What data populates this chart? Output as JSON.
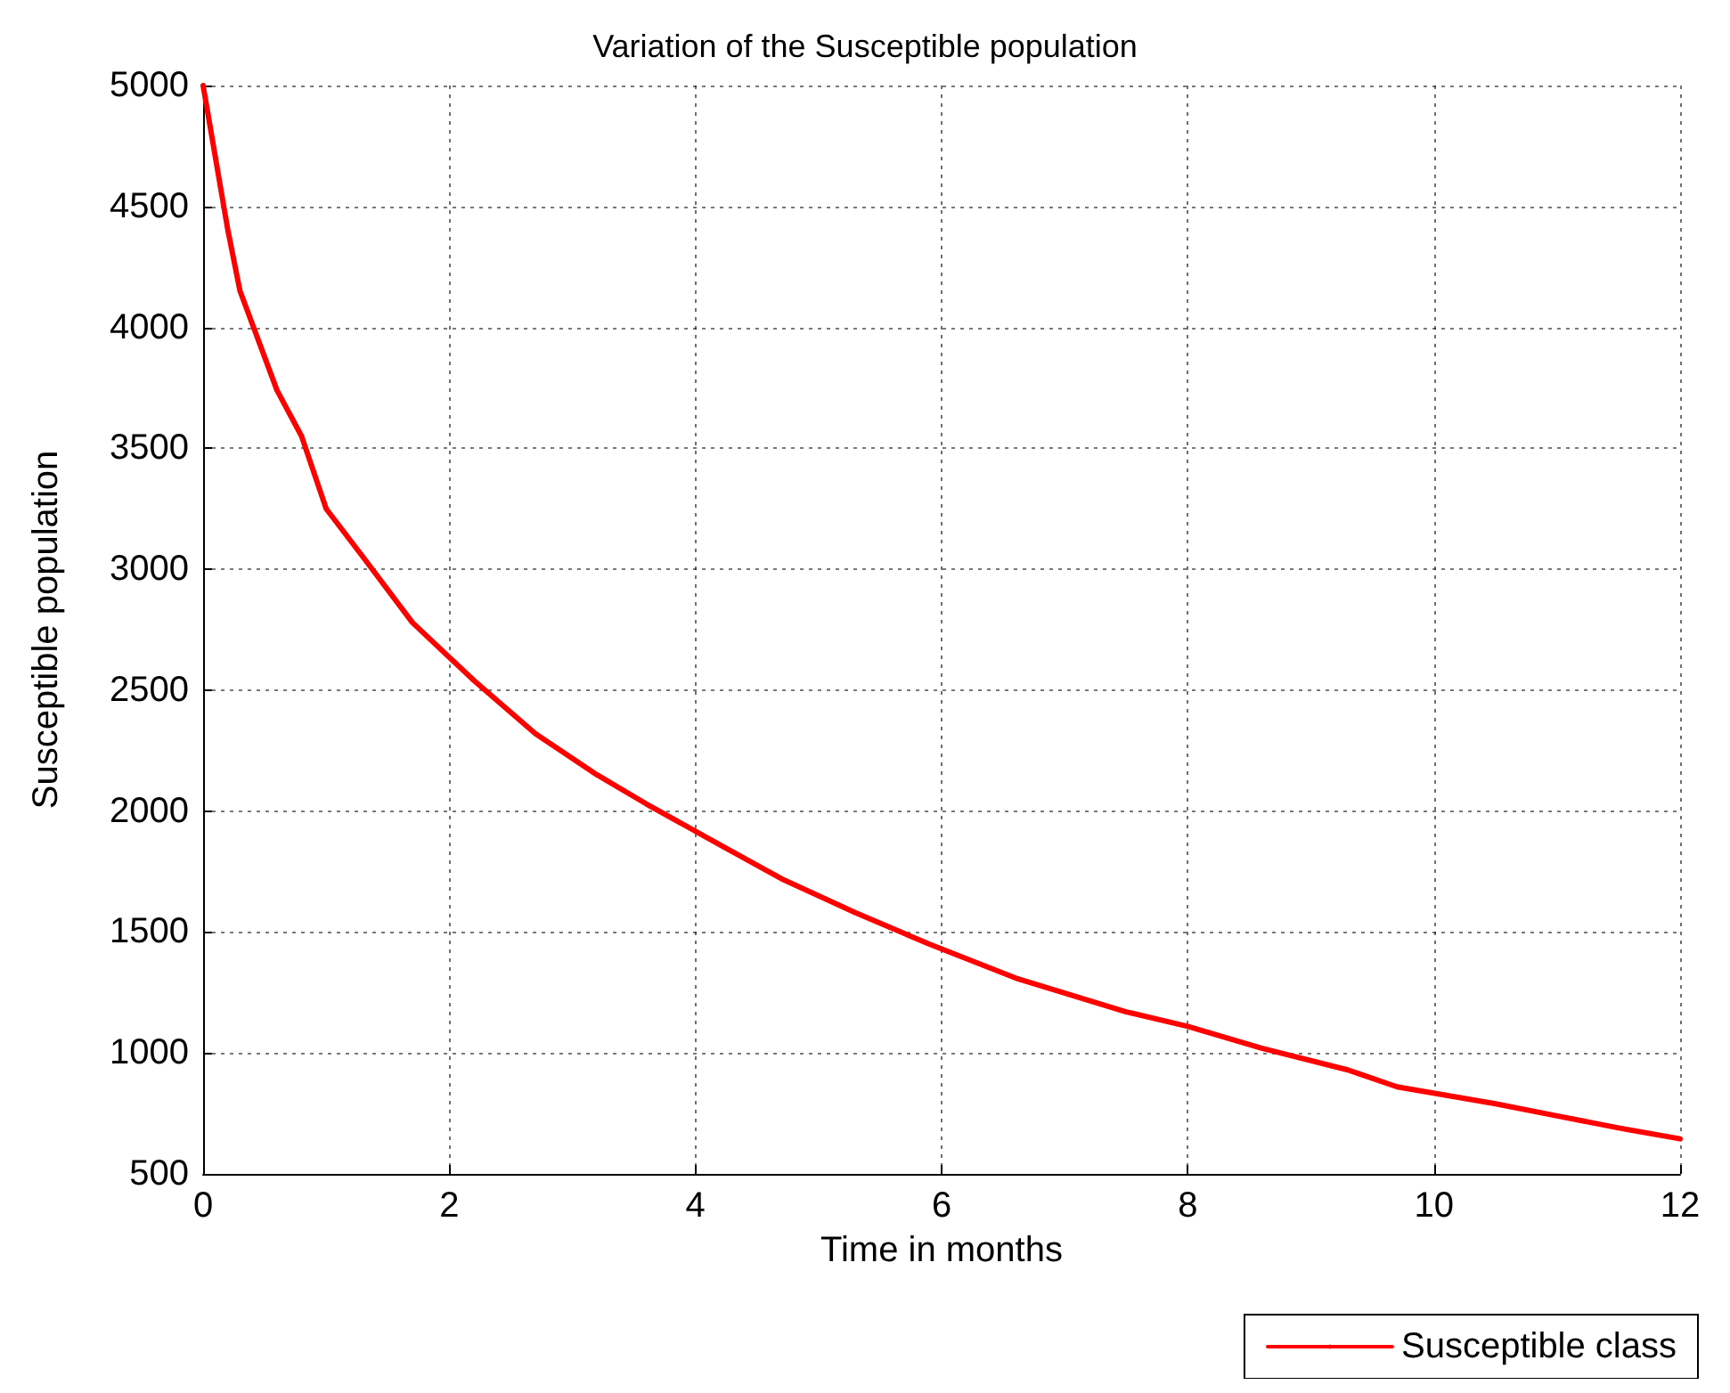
{
  "chart_data": {
    "type": "line",
    "title": "Variation of the Susceptible population",
    "xlabel": "Time in months",
    "ylabel": "Susceptible population",
    "x": [
      0,
      0.2,
      0.3,
      0.6,
      0.8,
      1.0,
      1.3,
      1.7,
      2.2,
      2.7,
      3.2,
      3.6,
      4.2,
      4.7,
      5.3,
      5.9,
      6.6,
      7.5,
      8.0,
      8.6,
      9.3,
      9.7,
      10.5,
      11,
      11.5,
      12
    ],
    "series": [
      {
        "name": "Susceptible class",
        "color": "#ff0000",
        "values": [
          5000,
          4405,
          4150,
          3740,
          3550,
          3250,
          3050,
          2780,
          2540,
          2320,
          2150,
          2030,
          1860,
          1720,
          1580,
          1450,
          1310,
          1170,
          1110,
          1020,
          930,
          860,
          790,
          740,
          690,
          645
        ]
      }
    ],
    "xlim": [
      0,
      12
    ],
    "xticks": [
      0,
      2,
      4,
      6,
      8,
      10,
      12
    ],
    "ylim": [
      500,
      5000
    ],
    "yticks": [
      500,
      1000,
      1500,
      2000,
      2500,
      3000,
      3500,
      4000,
      4500,
      5000
    ],
    "grid": true,
    "legend": "bottom right",
    "marker": "none",
    "line_style": "solid"
  }
}
